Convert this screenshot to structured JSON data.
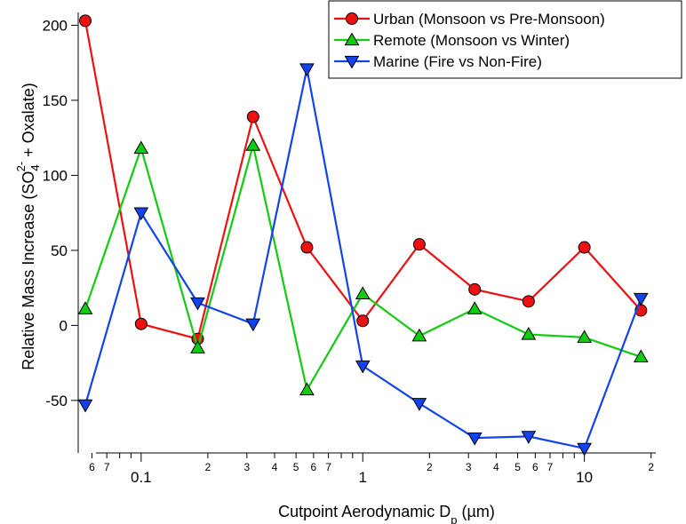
{
  "chart_data": {
    "type": "line",
    "x_scale": "log",
    "xlabel": {
      "main": "Cutpoint Aerodynamic D",
      "sub": "p",
      "unit": " (µm)"
    },
    "ylabel": {
      "part1": "Relative Mass Increase (SO",
      "sub": "4",
      "sup": "2-",
      "part2": " + Oxalate)"
    },
    "xlim": [
      0.052,
      21
    ],
    "ylim": [
      -85,
      205
    ],
    "y_ticks": [
      -50,
      0,
      50,
      100,
      150,
      200
    ],
    "y_tick_labels": [
      "-50",
      "0",
      "50",
      "100",
      "150",
      "200"
    ],
    "x_major_ticks": [
      0.1,
      1,
      10
    ],
    "x_major_labels": [
      "0.1",
      "1",
      "10"
    ],
    "x_minor_ticks": [
      0.06,
      0.07,
      0.08,
      0.09,
      0.2,
      0.3,
      0.4,
      0.5,
      0.6,
      0.7,
      0.8,
      0.9,
      2,
      3,
      4,
      5,
      6,
      7,
      8,
      9,
      20
    ],
    "x_minor_labels": [
      {
        "x": 0.06,
        "label": "6"
      },
      {
        "x": 0.07,
        "label": "7"
      },
      {
        "x": 0.2,
        "label": "2"
      },
      {
        "x": 0.3,
        "label": "3"
      },
      {
        "x": 0.4,
        "label": "4"
      },
      {
        "x": 0.5,
        "label": "5"
      },
      {
        "x": 0.6,
        "label": "6"
      },
      {
        "x": 0.7,
        "label": "7"
      },
      {
        "x": 2,
        "label": "2"
      },
      {
        "x": 3,
        "label": "3"
      },
      {
        "x": 4,
        "label": "4"
      },
      {
        "x": 5,
        "label": "5"
      },
      {
        "x": 6,
        "label": "6"
      },
      {
        "x": 7,
        "label": "7"
      },
      {
        "x": 20,
        "label": "2"
      }
    ],
    "legend_position": "top-right",
    "series": [
      {
        "name": "Urban (Monsoon vs Pre-Monsoon)",
        "color": "#ee1111",
        "marker": "circle",
        "x": [
          0.056,
          0.1,
          0.18,
          0.32,
          0.56,
          1.0,
          1.8,
          3.2,
          5.6,
          10,
          18
        ],
        "y": [
          203,
          1,
          -9,
          139,
          52,
          3,
          54,
          24,
          16,
          52,
          10
        ]
      },
      {
        "name": "Remote (Monsoon vs Winter)",
        "color": "#11cc11",
        "marker": "triangle-up",
        "x": [
          0.056,
          0.1,
          0.18,
          0.32,
          0.56,
          1.0,
          1.8,
          3.2,
          5.6,
          10,
          18
        ],
        "y": [
          11,
          118,
          -15,
          120,
          -43,
          21,
          -7,
          11,
          -6,
          -8,
          -21
        ]
      },
      {
        "name": "Marine (Fire vs Non-Fire)",
        "color": "#1144ee",
        "marker": "triangle-down",
        "x": [
          0.056,
          0.1,
          0.18,
          0.32,
          0.56,
          1.0,
          1.8,
          3.2,
          5.6,
          10,
          18
        ],
        "y": [
          -53,
          75,
          15,
          1,
          171,
          -27,
          -52,
          -75,
          -74,
          -82,
          18
        ]
      }
    ]
  }
}
